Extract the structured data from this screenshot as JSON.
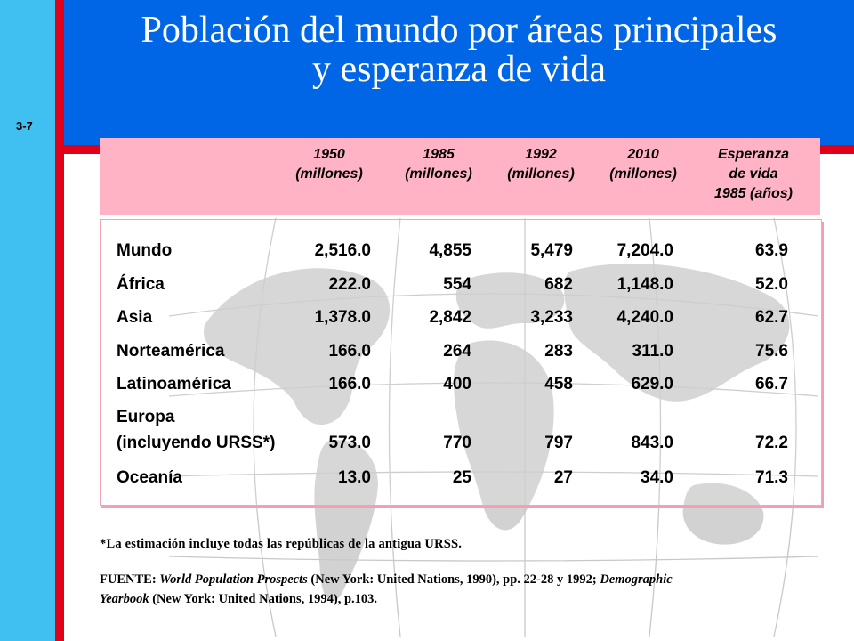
{
  "slide_number": "3-7",
  "title_line1": "Población del mundo por áreas principales",
  "title_line2": "y esperanza de vida",
  "columns": [
    {
      "line1": "1950",
      "line2": "(millones)",
      "line3": ""
    },
    {
      "line1": "1985",
      "line2": "(millones)",
      "line3": ""
    },
    {
      "line1": "1992",
      "line2": "(millones)",
      "line3": ""
    },
    {
      "line1": "2010",
      "line2": "(millones)",
      "line3": ""
    },
    {
      "line1": "Esperanza",
      "line2": "de vida",
      "line3": "1985 (años)"
    }
  ],
  "rows": [
    {
      "region": "Mundo",
      "region2": "",
      "v": [
        "2,516.0",
        "4,855",
        "5,479",
        "7,204.0",
        "63.9"
      ]
    },
    {
      "region": "África",
      "region2": "",
      "v": [
        "222.0",
        "554",
        "682",
        "1,148.0",
        "52.0"
      ]
    },
    {
      "region": "Asia",
      "region2": "",
      "v": [
        "1,378.0",
        "2,842",
        "3,233",
        "4,240.0",
        "62.7"
      ]
    },
    {
      "region": "Norteamérica",
      "region2": "",
      "v": [
        "166.0",
        "264",
        "283",
        "311.0",
        "75.6"
      ]
    },
    {
      "region": "Latinoamérica",
      "region2": "",
      "v": [
        "166.0",
        "400",
        "458",
        "629.0",
        "66.7"
      ]
    },
    {
      "region": "Europa",
      "region2": "(incluyendo URSS*)",
      "v": [
        "573.0",
        "770",
        "797",
        "843.0",
        "72.2"
      ]
    },
    {
      "region": "Oceanía",
      "region2": "",
      "v": [
        "13.0",
        "25",
        "27",
        "34.0",
        "71.3"
      ]
    }
  ],
  "footnote": "*La estimación incluye todas las repúblicas de la antigua URSS.",
  "source": {
    "prefix": "FUENTE: ",
    "title1": "World Population Prospects",
    "mid": " (New York: United Nations, 1990), pp. 22-28 y 1992; ",
    "title2": "Demographic Yearbook",
    "suffix": " (New York: United Nations, 1994), p.103."
  }
}
